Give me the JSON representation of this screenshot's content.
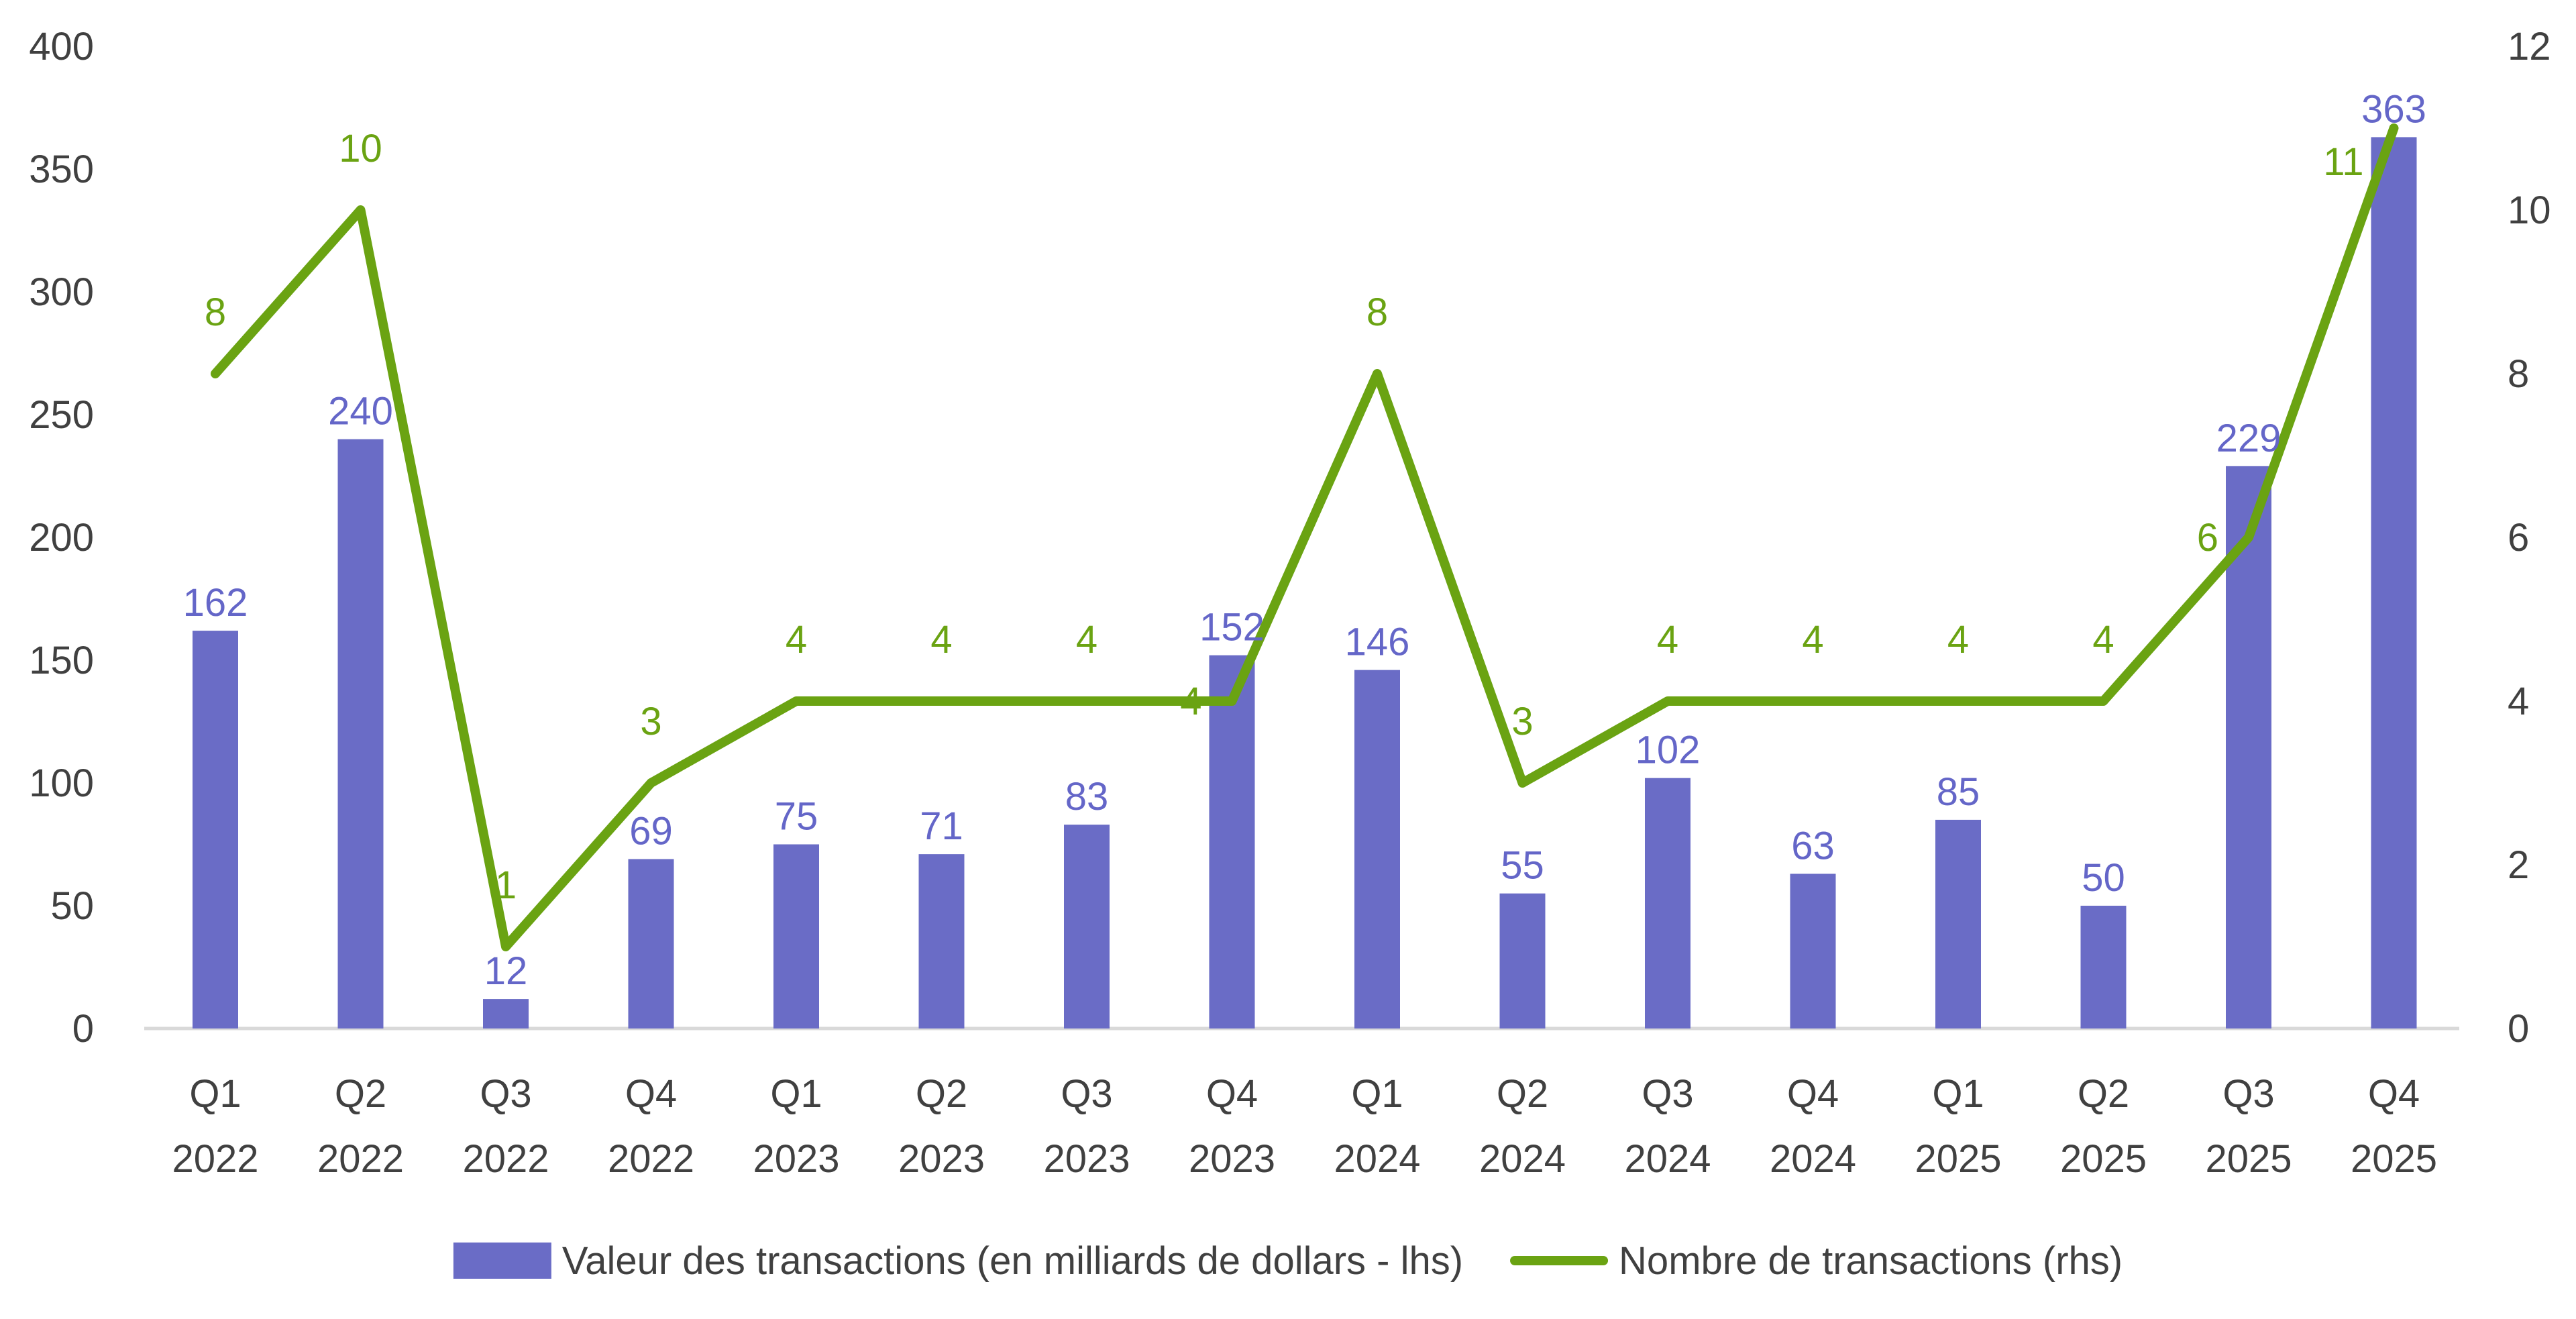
{
  "chart_data": {
    "type": "bar+line",
    "categories": [
      "Q1 2022",
      "Q2 2022",
      "Q3 2022",
      "Q4 2022",
      "Q1 2023",
      "Q2 2023",
      "Q3 2023",
      "Q4 2023",
      "Q1 2024",
      "Q2 2024",
      "Q3 2024",
      "Q4 2024",
      "Q1 2025",
      "Q2 2025",
      "Q3 2025",
      "Q4 2025"
    ],
    "category_lines": [
      [
        "Q1",
        "2022"
      ],
      [
        "Q2",
        "2022"
      ],
      [
        "Q3",
        "2022"
      ],
      [
        "Q4",
        "2022"
      ],
      [
        "Q1",
        "2023"
      ],
      [
        "Q2",
        "2023"
      ],
      [
        "Q3",
        "2023"
      ],
      [
        "Q4",
        "2023"
      ],
      [
        "Q1",
        "2024"
      ],
      [
        "Q2",
        "2024"
      ],
      [
        "Q3",
        "2024"
      ],
      [
        "Q4",
        "2024"
      ],
      [
        "Q1",
        "2025"
      ],
      [
        "Q2",
        "2025"
      ],
      [
        "Q3",
        "2025"
      ],
      [
        "Q4",
        "2025"
      ]
    ],
    "series": [
      {
        "name": "Valeur des transactions (en milliards de dollars - lhs)",
        "type": "bar",
        "axis": "left",
        "color": "#6A6CC6",
        "values": [
          162,
          240,
          12,
          69,
          75,
          71,
          83,
          152,
          146,
          55,
          102,
          63,
          85,
          50,
          229,
          363
        ]
      },
      {
        "name": "Nombre de transactions (rhs)",
        "type": "line",
        "axis": "right",
        "color": "#6AA312",
        "values": [
          8,
          10,
          1,
          3,
          4,
          4,
          4,
          4,
          8,
          3,
          4,
          4,
          4,
          4,
          6,
          11
        ]
      }
    ],
    "y_left": {
      "range": [
        0,
        400
      ],
      "ticks": [
        "0",
        "50",
        "100",
        "150",
        "200",
        "250",
        "300",
        "350",
        "400"
      ]
    },
    "y_right": {
      "range": [
        0,
        12
      ],
      "ticks": [
        "0",
        "2",
        "4",
        "6",
        "8",
        "10",
        "12"
      ]
    },
    "grid": false,
    "legend": "bottom",
    "data_labels": true
  }
}
